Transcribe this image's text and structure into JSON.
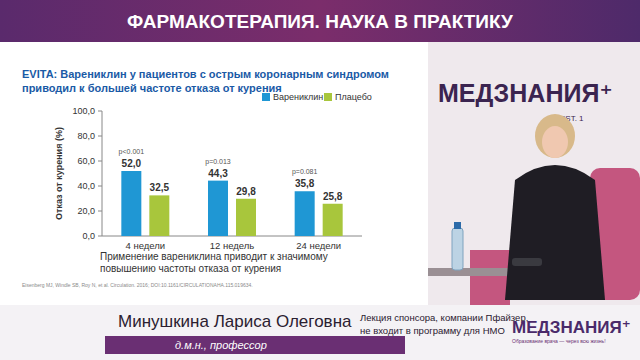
{
  "chart_data": {
    "type": "bar",
    "title": "EVITA: Варениклин у пациентов с острым коронарным синдромом приводил к большей частоте отказа от курения",
    "y_label": "Отказ от курения (%)",
    "categories": [
      "4 недели",
      "12 недель",
      "24 недели"
    ],
    "series": [
      {
        "name": "Варениклин",
        "color": "#1f97d4",
        "values": [
          52.0,
          44.3,
          35.8
        ],
        "value_labels": [
          "52,0",
          "44,3",
          "35,8"
        ]
      },
      {
        "name": "Плацебо",
        "color": "#a8c63c",
        "values": [
          32.5,
          29.8,
          25.8
        ],
        "value_labels": [
          "32,5",
          "29,8",
          "25,8"
        ]
      }
    ],
    "ylim": [
      0,
      100
    ],
    "yticks": [
      {
        "value": 0,
        "label": "0,0"
      },
      {
        "value": 20,
        "label": "20,0"
      },
      {
        "value": 40,
        "label": "40,0"
      },
      {
        "value": 60,
        "label": "60,0"
      },
      {
        "value": 80,
        "label": "80,0"
      },
      {
        "value": 100,
        "label": "100,0"
      }
    ],
    "grid": false,
    "legend": "top-right",
    "data_labels": true,
    "annotations": [
      "p<0.001",
      "p=0.013",
      "p=0.081"
    ],
    "caption": "Применение варениклина приводит к значимому повышению частоты отказа от курения",
    "source": "Eisenberg MJ, Windle SB, Roy N, et al. Circulation. 2016; DOI:10.1161/CIRCULATIONAHA.115.019634."
  },
  "page": {
    "header": "ФАРМАКОТЕРАПИЯ. НАУКА В ПРАКТИКУ",
    "studio_logo": "МЕДЗНАНИЯ⁺",
    "studio_est": "EST. 1",
    "speaker_name": "Минушкина Лариса Олеговна",
    "speaker_title": "д.м.н., профессор",
    "disclaimer": [
      "Лекция спонсора, компании Пфайзер,",
      "не входит в программу для НМО"
    ],
    "footer_logo": "МЕДЗНАНИЯ⁺",
    "footer_slogan": "Образование врача — через всю жизнь!"
  }
}
